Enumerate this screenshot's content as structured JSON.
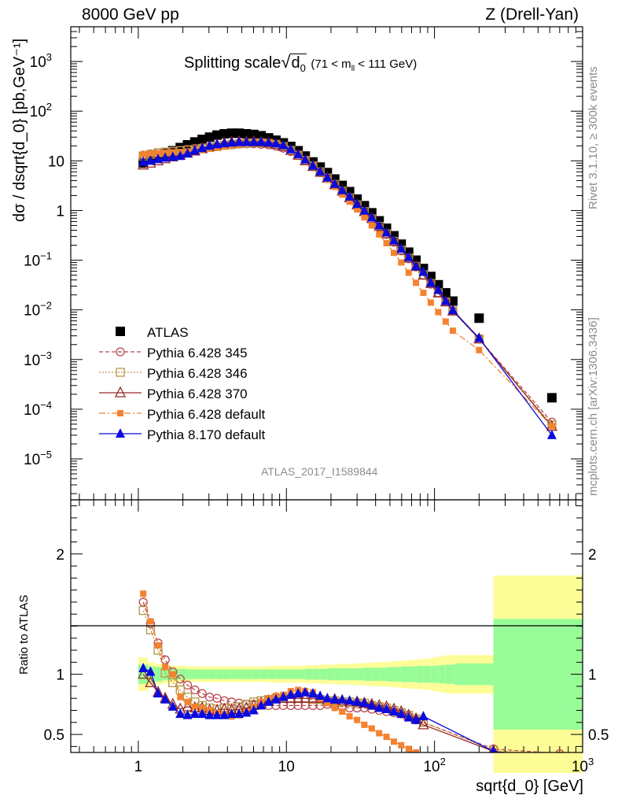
{
  "header": {
    "left": "8000 GeV pp",
    "right": "Z (Drell-Yan)"
  },
  "side_labels": {
    "rivet": "Rivet 3.1.10, ≥ 300k events",
    "mcplots": "mcplots.cern.ch [arXiv:1306.3436]"
  },
  "analysis_id": "ATLAS_2017_I1589844",
  "chart_data": [
    {
      "type": "scatter",
      "panel": "main",
      "title_main": "Splitting scale",
      "title_sub": "(71 < m",
      "title_sub_tail": " < 111 GeV)",
      "ylabel": "dσ / dsqrt{d_0} [pb,GeV⁻¹]",
      "xlabel": "sqrt{d_0} [GeV]",
      "xscale": "log",
      "yscale": "log",
      "xlim": [
        0.35,
        1000
      ],
      "ylim": [
        1.5e-06,
        5000
      ],
      "legend_placement": "bottom-left",
      "legend": [
        "ATLAS",
        "Pythia 6.428 345",
        "Pythia 6.428 346",
        "Pythia 6.428 370",
        "Pythia 6.428 default",
        "Pythia 8.170 default"
      ],
      "x": [
        1.08,
        1.21,
        1.36,
        1.52,
        1.71,
        1.92,
        2.15,
        2.41,
        2.7,
        3.03,
        3.4,
        3.81,
        4.27,
        4.79,
        5.37,
        6.02,
        6.75,
        7.58,
        8.5,
        9.53,
        10.7,
        12.0,
        13.4,
        15.1,
        16.9,
        18.9,
        21.2,
        23.8,
        26.7,
        30.0,
        33.6,
        37.7,
        42.3,
        47.4,
        53.2,
        59.6,
        66.9,
        75.0,
        84.1,
        94.4,
        106,
        119,
        133,
        200,
        620
      ],
      "series": [
        {
          "name": "ATLAS",
          "values": [
            9.0,
            10.5,
            12.0,
            14.0,
            16.0,
            18.5,
            21.0,
            24.0,
            27.0,
            30.0,
            33.0,
            35.0,
            36.0,
            36.0,
            35.0,
            34.0,
            32.0,
            29.0,
            26.0,
            23.0,
            19.5,
            16.0,
            12.5,
            9.5,
            7.5,
            5.8,
            4.3,
            3.2,
            2.4,
            1.7,
            1.25,
            0.9,
            0.62,
            0.44,
            0.31,
            0.21,
            0.145,
            0.1,
            0.068,
            0.047,
            0.032,
            0.022,
            0.015,
            0.0068,
            0.00017
          ]
        },
        {
          "name": "Pythia 6.428 345",
          "values": [
            13.0,
            13.8,
            14.5,
            15.0,
            15.5,
            16.3,
            17.0,
            17.8,
            18.5,
            19.0,
            19.6,
            20.5,
            21.0,
            21.8,
            22.0,
            22.0,
            21.5,
            21.0,
            19.8,
            18.0,
            15.5,
            12.8,
            10.0,
            7.7,
            5.8,
            4.4,
            3.25,
            2.4,
            1.75,
            1.27,
            0.92,
            0.66,
            0.46,
            0.33,
            0.23,
            0.155,
            0.107,
            0.073,
            0.05,
            0.033,
            0.022,
            0.0145,
            0.0095,
            0.0026,
            5.5e-05
          ]
        },
        {
          "name": "Pythia 6.428 346",
          "values": [
            12.5,
            13.5,
            14.5,
            15.0,
            15.5,
            16.0,
            16.5,
            17.0,
            17.8,
            18.5,
            19.3,
            20.5,
            21.2,
            22.0,
            22.5,
            23.0,
            23.0,
            22.5,
            21.5,
            19.5,
            16.3,
            13.0,
            10.2,
            7.9,
            6.0,
            4.5,
            3.35,
            2.45,
            1.8,
            1.3,
            0.95,
            0.68,
            0.48,
            0.34,
            0.24,
            0.16,
            0.11,
            0.075,
            0.051,
            0.034,
            0.022,
            0.0145,
            0.0095,
            0.0026,
            4.8e-05
          ]
        },
        {
          "name": "Pythia 6.428 370",
          "values": [
            8.2,
            9.0,
            10.0,
            11.0,
            12.0,
            13.0,
            14.3,
            15.8,
            17.5,
            19.3,
            21.0,
            22.5,
            23.5,
            24.0,
            24.0,
            24.0,
            23.8,
            22.8,
            21.2,
            19.3,
            16.2,
            13.0,
            10.0,
            7.7,
            5.9,
            4.5,
            3.3,
            2.45,
            1.8,
            1.3,
            0.95,
            0.69,
            0.48,
            0.34,
            0.24,
            0.16,
            0.11,
            0.075,
            0.05,
            0.034,
            0.022,
            0.0145,
            0.0095,
            0.0026,
            4.5e-05
          ]
        },
        {
          "name": "Pythia 6.428 default",
          "values": [
            13.5,
            14.0,
            14.2,
            14.5,
            14.8,
            15.0,
            15.4,
            16.0,
            16.5,
            17.5,
            18.5,
            19.5,
            20.5,
            21.5,
            22.5,
            24.0,
            24.5,
            23.5,
            22.5,
            19.5,
            16.5,
            13.8,
            10.8,
            8.0,
            5.9,
            4.2,
            3.0,
            2.1,
            1.5,
            1.05,
            0.73,
            0.5,
            0.33,
            0.22,
            0.14,
            0.09,
            0.056,
            0.035,
            0.022,
            0.014,
            0.009,
            0.0058,
            0.0038,
            0.00155,
            4.55e-05
          ]
        },
        {
          "name": "Pythia 8.170 default",
          "values": [
            9.5,
            10.0,
            10.8,
            11.5,
            12.0,
            12.5,
            14.0,
            16.0,
            18.0,
            20.0,
            21.5,
            22.5,
            23.2,
            23.8,
            23.8,
            24.0,
            24.2,
            23.3,
            22.3,
            20.5,
            17.0,
            13.6,
            10.6,
            8.0,
            6.1,
            4.6,
            3.4,
            2.55,
            1.9,
            1.35,
            0.99,
            0.72,
            0.5,
            0.36,
            0.25,
            0.17,
            0.115,
            0.075,
            0.058,
            0.035,
            0.025,
            0.015,
            0.0098,
            0.0027,
            3e-05
          ]
        }
      ]
    },
    {
      "type": "scatter",
      "panel": "ratio",
      "ylabel": "Ratio to ATLAS",
      "xlabel": "sqrt{d_0} [GeV]",
      "xscale": "log",
      "xlim": [
        0.35,
        1000
      ],
      "ylim": [
        0.35,
        2.45
      ],
      "ytick_labels": [
        "0.5",
        "1",
        "2"
      ],
      "reference": 1.0,
      "uncertainty_band_edges": [
        1.0,
        1.16,
        1.3,
        1.46,
        1.65,
        1.87,
        2.1,
        2.36,
        2.65,
        2.97,
        3.33,
        3.74,
        4.2,
        4.72,
        5.3,
        5.95,
        6.68,
        7.5,
        8.42,
        9.45,
        10.6,
        11.9,
        13.4,
        15.0,
        16.8,
        18.9,
        21.2,
        23.8,
        26.7,
        30.0,
        33.6,
        37.7,
        42.3,
        47.5,
        53.3,
        59.8,
        67.1,
        75.3,
        84.5,
        94.8,
        106,
        119,
        137,
        250,
        1000
      ],
      "band_inner": [
        0.08,
        0.065,
        0.06,
        0.05,
        0.045,
        0.045,
        0.04,
        0.04,
        0.04,
        0.04,
        0.04,
        0.04,
        0.04,
        0.04,
        0.04,
        0.04,
        0.04,
        0.04,
        0.04,
        0.04,
        0.04,
        0.04,
        0.045,
        0.045,
        0.045,
        0.05,
        0.05,
        0.05,
        0.05,
        0.05,
        0.055,
        0.055,
        0.055,
        0.06,
        0.06,
        0.065,
        0.065,
        0.07,
        0.07,
        0.07,
        0.075,
        0.08,
        0.09,
        0.46
      ],
      "band_outer": [
        0.14,
        0.1,
        0.085,
        0.075,
        0.07,
        0.07,
        0.065,
        0.065,
        0.065,
        0.065,
        0.065,
        0.065,
        0.065,
        0.065,
        0.065,
        0.065,
        0.065,
        0.07,
        0.07,
        0.07,
        0.07,
        0.07,
        0.075,
        0.075,
        0.08,
        0.08,
        0.085,
        0.085,
        0.09,
        0.09,
        0.095,
        0.1,
        0.1,
        0.105,
        0.11,
        0.115,
        0.12,
        0.125,
        0.13,
        0.14,
        0.15,
        0.16,
        0.16,
        0.82
      ],
      "series": [
        {
          "name": "Pythia 6.428 345",
          "x": [
            1.08,
            1.21,
            1.36,
            1.52,
            1.71,
            1.92,
            2.15,
            2.41,
            2.7,
            3.03,
            3.4,
            3.81,
            4.27,
            4.79,
            5.37,
            6.02,
            6.75,
            7.58,
            8.5,
            9.53,
            10.7,
            12.0,
            13.4,
            15.1,
            16.9,
            18.9,
            21.2,
            23.8,
            26.7,
            30.0,
            33.6,
            37.7,
            42.3,
            47.4,
            53.2,
            59.6,
            66.9,
            75.0,
            84.1,
            250,
            700
          ],
          "values": [
            1.6,
            1.42,
            1.26,
            1.12,
            1.02,
            0.96,
            0.91,
            0.87,
            0.84,
            0.81,
            0.8,
            0.78,
            0.77,
            0.76,
            0.75,
            0.75,
            0.75,
            0.74,
            0.74,
            0.74,
            0.74,
            0.74,
            0.74,
            0.74,
            0.74,
            0.75,
            0.74,
            0.73,
            0.72,
            0.72,
            0.72,
            0.71,
            0.7,
            0.69,
            0.68,
            0.67,
            0.65,
            0.62,
            0.6,
            0.38,
            0.34
          ]
        },
        {
          "name": "Pythia 6.428 346",
          "x": [
            1.08,
            1.21,
            1.36,
            1.52,
            1.71,
            1.92,
            2.15,
            2.41,
            2.7,
            3.03,
            3.4,
            3.81,
            4.27,
            4.79,
            5.37,
            6.02,
            6.75,
            7.58,
            8.5,
            9.53,
            10.7,
            12.0,
            13.4,
            15.1,
            16.9,
            18.9,
            21.2,
            23.8,
            26.7,
            30.0,
            33.6,
            37.7,
            42.3,
            47.4,
            53.2,
            59.6,
            66.9,
            75.0,
            84.1,
            250,
            700
          ],
          "values": [
            1.53,
            1.37,
            1.2,
            1.01,
            0.93,
            0.87,
            0.81,
            0.77,
            0.74,
            0.72,
            0.71,
            0.72,
            0.72,
            0.73,
            0.75,
            0.77,
            0.78,
            0.79,
            0.8,
            0.8,
            0.8,
            0.8,
            0.8,
            0.79,
            0.79,
            0.78,
            0.78,
            0.77,
            0.77,
            0.76,
            0.76,
            0.74,
            0.73,
            0.72,
            0.7,
            0.68,
            0.66,
            0.63,
            0.6,
            0.37,
            0.32
          ]
        },
        {
          "name": "Pythia 6.428 370",
          "x": [
            1.08,
            1.21,
            1.36,
            1.52,
            1.71,
            1.92,
            2.15,
            2.41,
            2.7,
            3.03,
            3.4,
            3.81,
            4.27,
            4.79,
            5.37,
            6.02,
            6.75,
            7.58,
            8.5,
            9.53,
            10.7,
            12.0,
            13.4,
            15.1,
            16.9,
            18.9,
            21.2,
            23.8,
            26.7,
            30.0,
            33.6,
            37.7,
            42.3,
            47.4,
            53.2,
            59.6,
            66.9,
            75.0,
            84.1,
            250,
            700
          ],
          "values": [
            1.0,
            0.93,
            0.85,
            0.8,
            0.75,
            0.71,
            0.73,
            0.72,
            0.72,
            0.7,
            0.7,
            0.71,
            0.7,
            0.71,
            0.72,
            0.74,
            0.76,
            0.78,
            0.8,
            0.8,
            0.8,
            0.8,
            0.8,
            0.8,
            0.8,
            0.79,
            0.79,
            0.78,
            0.77,
            0.77,
            0.76,
            0.75,
            0.74,
            0.73,
            0.71,
            0.69,
            0.66,
            0.63,
            0.58,
            0.36,
            0.3
          ]
        },
        {
          "name": "Pythia 6.428 default",
          "x": [
            1.08,
            1.21,
            1.36,
            1.52,
            1.71,
            1.92,
            2.15,
            2.41,
            2.7,
            3.03,
            3.4,
            3.81,
            4.27,
            4.79,
            5.37,
            6.02,
            6.75,
            7.58,
            8.5,
            9.53,
            10.7,
            12.0,
            13.4,
            15.1,
            16.9,
            18.9,
            21.2,
            23.8,
            26.7,
            30.0,
            33.6,
            37.7,
            42.3,
            47.4,
            53.2,
            59.6,
            66.9,
            75.0
          ],
          "values": [
            1.67,
            1.44,
            1.24,
            1.06,
            1.0,
            0.81,
            0.77,
            0.73,
            0.72,
            0.7,
            0.68,
            0.67,
            0.65,
            0.66,
            0.69,
            0.73,
            0.77,
            0.8,
            0.82,
            0.83,
            0.86,
            0.87,
            0.86,
            0.85,
            0.8,
            0.76,
            0.72,
            0.69,
            0.65,
            0.62,
            0.58,
            0.55,
            0.51,
            0.48,
            0.44,
            0.41,
            0.38,
            0.35
          ]
        },
        {
          "name": "Pythia 8.170 default",
          "x": [
            1.08,
            1.21,
            1.36,
            1.52,
            1.71,
            1.92,
            2.15,
            2.41,
            2.7,
            3.03,
            3.4,
            3.81,
            4.27,
            4.79,
            5.37,
            6.02,
            6.75,
            7.58,
            8.5,
            9.53,
            10.7,
            12.0,
            13.4,
            15.1,
            16.9,
            18.9,
            21.2,
            23.8,
            26.7,
            30.0,
            33.6,
            37.7,
            42.3,
            47.4,
            53.2,
            59.6,
            66.9,
            75.0,
            84.1,
            250,
            700
          ],
          "values": [
            1.05,
            1.02,
            0.84,
            0.79,
            0.73,
            0.67,
            0.66,
            0.67,
            0.67,
            0.66,
            0.66,
            0.66,
            0.67,
            0.67,
            0.68,
            0.7,
            0.74,
            0.77,
            0.79,
            0.81,
            0.83,
            0.84,
            0.85,
            0.84,
            0.82,
            0.8,
            0.79,
            0.79,
            0.78,
            0.77,
            0.76,
            0.74,
            0.72,
            0.71,
            0.69,
            0.67,
            0.64,
            0.62,
            0.65,
            0.36,
            0.27
          ]
        }
      ]
    }
  ],
  "colors": {
    "atlas": "#000000",
    "p345": "#b9484f",
    "p346": "#b79545",
    "p370": "#982929",
    "p6def": "#f58230",
    "p8def": "#0b0bdc",
    "band_inner": "#97fc97",
    "band_outer": "#fdfd97"
  }
}
